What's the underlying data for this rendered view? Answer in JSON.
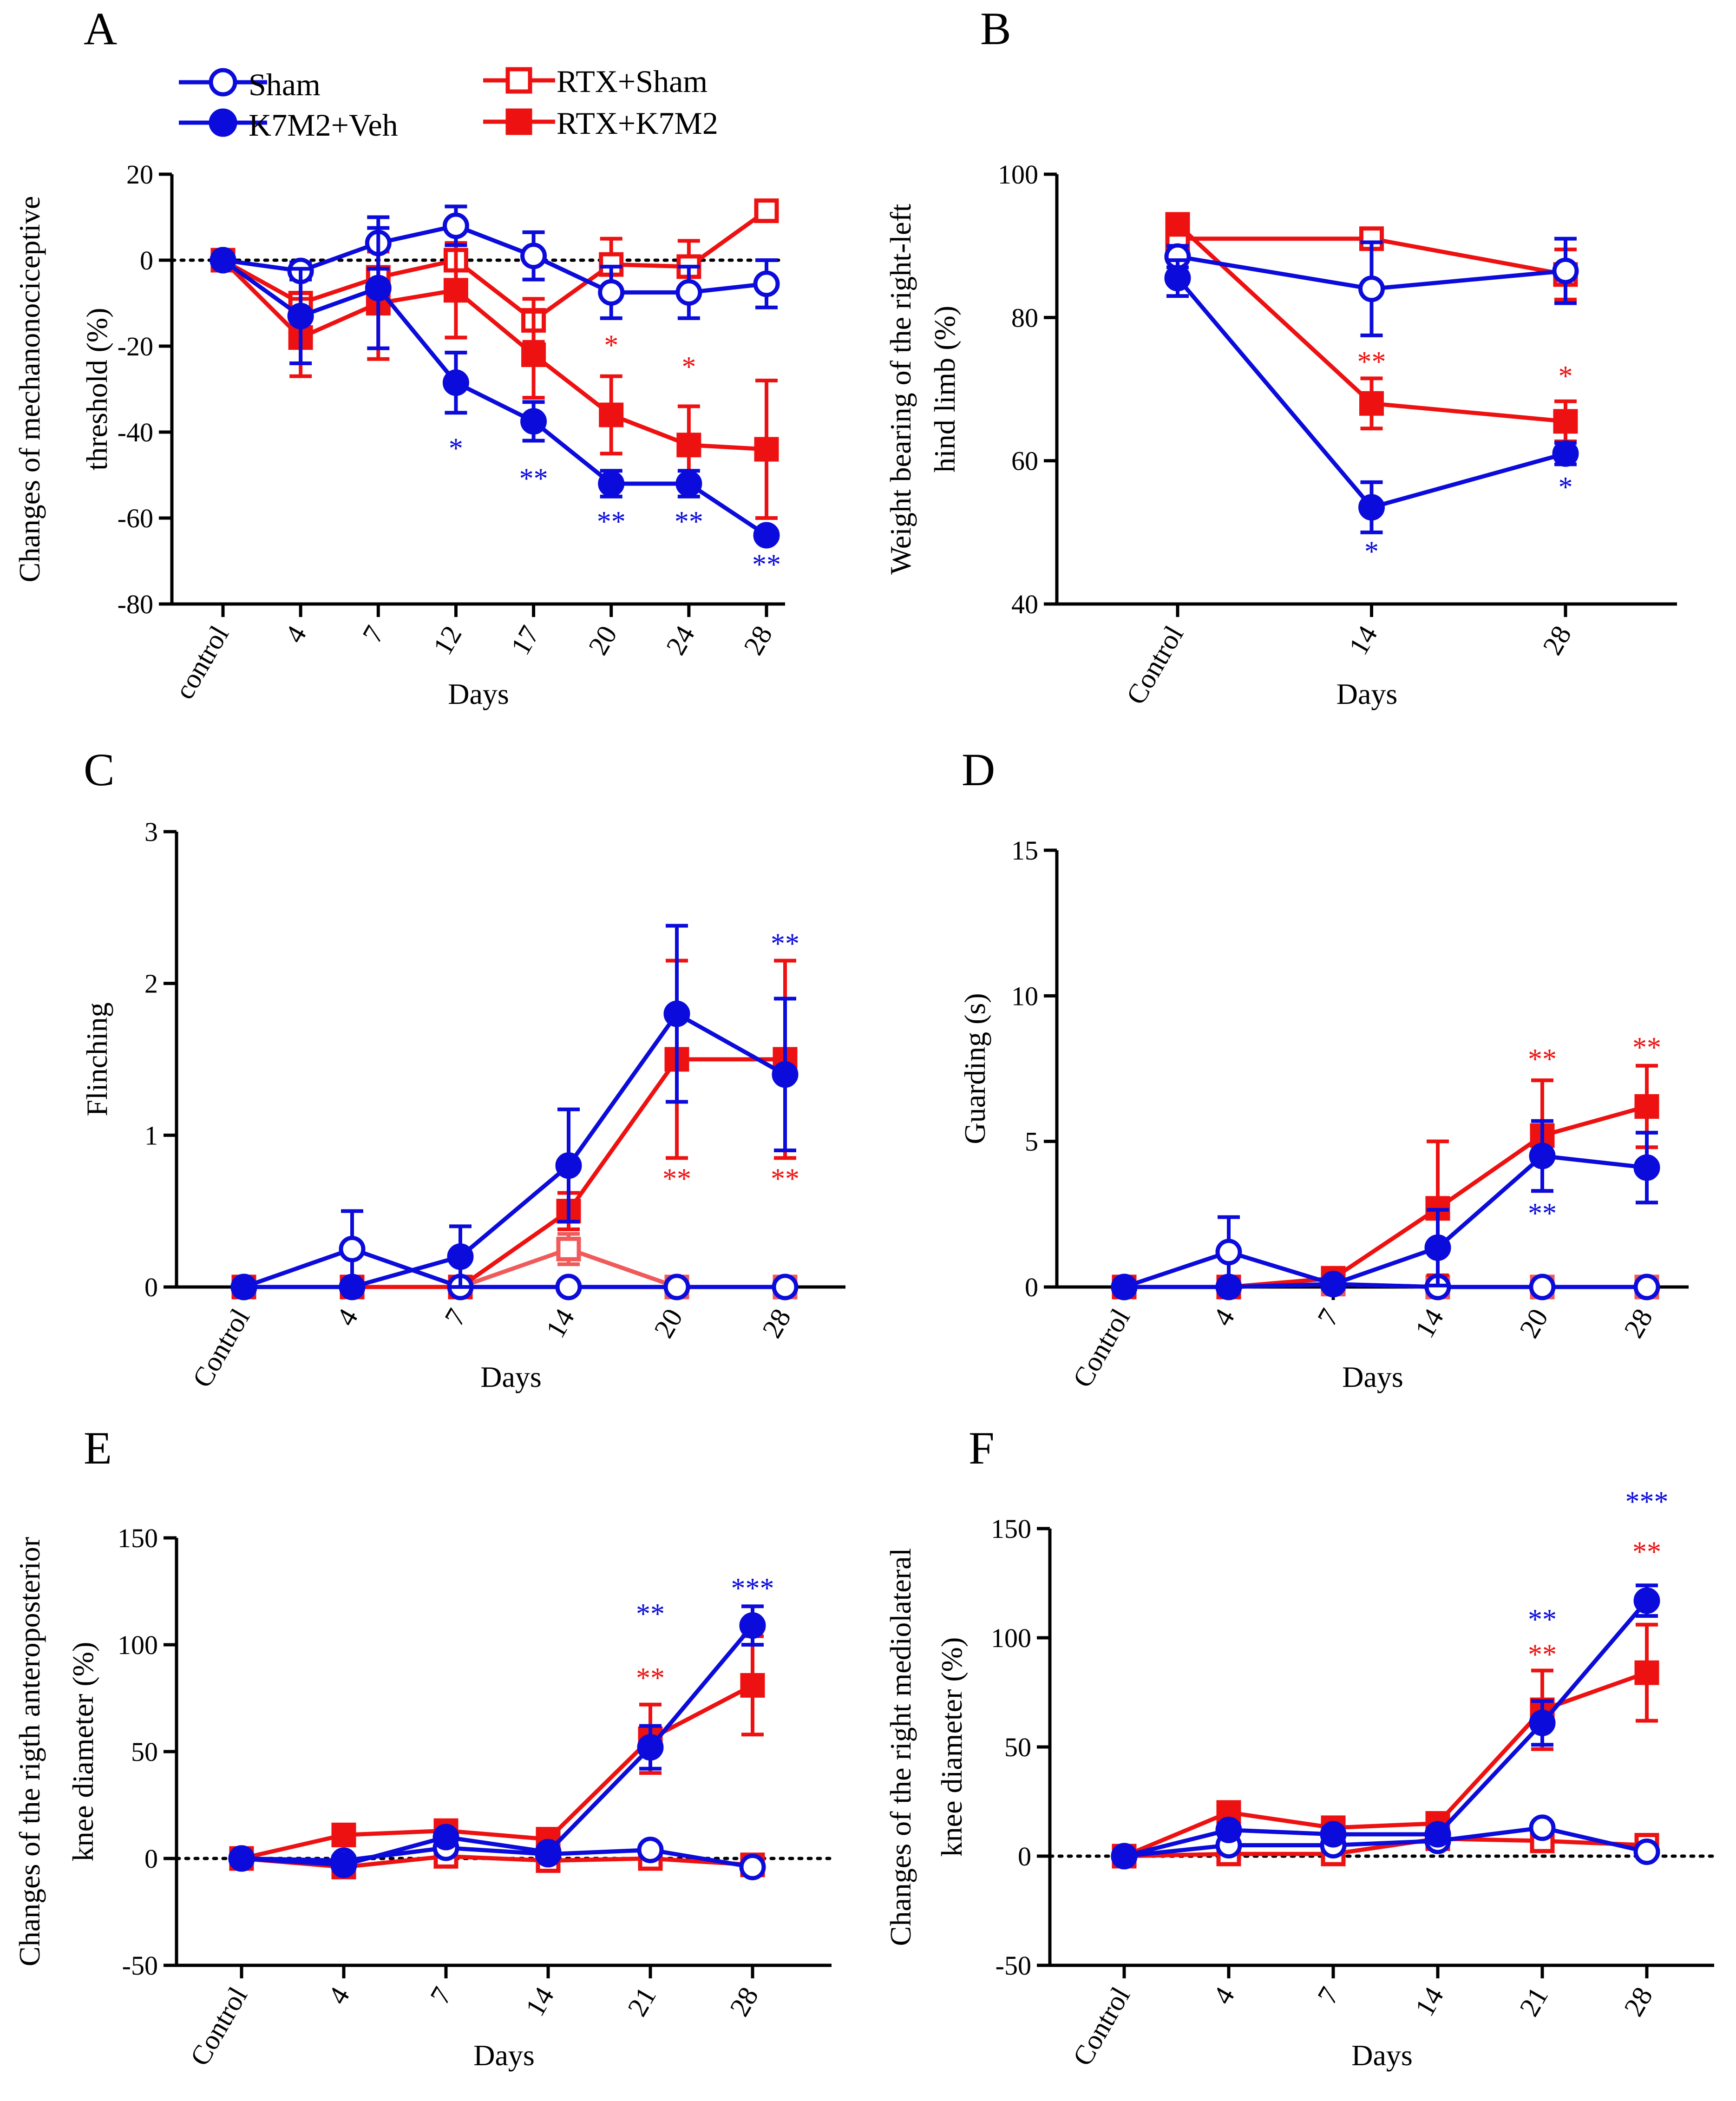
{
  "legend": {
    "sham": "Sham",
    "k7m2": "K7M2+Veh",
    "rtxsham": "RTX+Sham",
    "rtxk7m2": "RTX+K7M2"
  },
  "colors": {
    "blue": "#0b0bdb",
    "red": "#ee1111",
    "red_light": "#f05a5a"
  },
  "chart_data": [
    {
      "id": "A",
      "type": "line",
      "panel_label": "A",
      "ylabel": [
        "Changes of mechanonociceptive",
        "threshold (%)"
      ],
      "xlabel": "Days",
      "categories": [
        "control",
        "4",
        "7",
        "12",
        "17",
        "20",
        "24",
        "28"
      ],
      "ylim": [
        -80,
        20
      ],
      "yticks": [
        20,
        0,
        -20,
        -40,
        -60,
        -80
      ],
      "yticklabels": [
        "20",
        "0",
        "-20",
        "-40",
        "-60",
        "-80"
      ],
      "zero_line": true,
      "series": [
        {
          "key": "rtxsham",
          "name": "RTX+Sham",
          "color": "red",
          "marker": "square",
          "fill": "open",
          "values": [
            0,
            -10,
            -4,
            0,
            -14,
            -1,
            -1.5,
            11.5
          ],
          "err": [
            1,
            2,
            6,
            8,
            5,
            6,
            6,
            2
          ]
        },
        {
          "key": "rtxk7m2",
          "name": "RTX+K7M2",
          "color": "red",
          "marker": "square",
          "fill": "filled",
          "values": [
            0,
            -18,
            -10,
            -7,
            -22,
            -36,
            -43,
            -44
          ],
          "err": [
            1,
            9,
            13,
            11,
            10,
            9,
            9,
            16
          ]
        },
        {
          "key": "sham",
          "name": "Sham",
          "color": "blue",
          "marker": "circle",
          "fill": "open",
          "values": [
            0,
            -2.5,
            4,
            8,
            1,
            -7.5,
            -7.5,
            -5.5
          ],
          "err": [
            1,
            2,
            6,
            4.5,
            5.5,
            6,
            6,
            5.5
          ]
        },
        {
          "key": "k7m2",
          "name": "K7M2+Veh",
          "color": "blue",
          "marker": "circle",
          "fill": "filled",
          "values": [
            0,
            -13,
            -6.5,
            -28.5,
            -37.5,
            -52,
            -52,
            -64
          ],
          "err": [
            1,
            11,
            14,
            7,
            4.5,
            3,
            3,
            1
          ]
        }
      ],
      "annotations": [
        {
          "x": 3,
          "y": -46,
          "text": "*",
          "color": "blue"
        },
        {
          "x": 4,
          "y": -53,
          "text": "**",
          "color": "blue"
        },
        {
          "x": 5,
          "y": -63,
          "text": "**",
          "color": "blue"
        },
        {
          "x": 6,
          "y": -63,
          "text": "**",
          "color": "blue"
        },
        {
          "x": 7,
          "y": -73,
          "text": "**",
          "color": "blue"
        },
        {
          "x": 5,
          "y": -22,
          "text": "*",
          "color": "red"
        },
        {
          "x": 6,
          "y": -27,
          "text": "*",
          "color": "red"
        }
      ]
    },
    {
      "id": "B",
      "type": "line",
      "panel_label": "B",
      "ylabel": [
        "Weight bearing of the right-left",
        "hind limb (%)"
      ],
      "xlabel": "Days",
      "categories": [
        "Control",
        "14",
        "28"
      ],
      "ylim": [
        40,
        100
      ],
      "yticks": [
        100,
        80,
        60,
        40
      ],
      "yticklabels": [
        "100",
        "80",
        "60",
        "40"
      ],
      "zero_line": false,
      "series": [
        {
          "key": "rtxsham",
          "name": "RTX+Sham",
          "color": "red",
          "marker": "square",
          "fill": "open",
          "values": [
            91,
            91,
            86
          ],
          "err": [
            0.8,
            1.2,
            3.5
          ]
        },
        {
          "key": "rtxk7m2",
          "name": "RTX+K7M2",
          "color": "red",
          "marker": "square",
          "fill": "filled",
          "values": [
            93,
            68,
            65.5
          ],
          "err": [
            0.8,
            3.5,
            2.8
          ]
        },
        {
          "key": "sham",
          "name": "Sham",
          "color": "blue",
          "marker": "circle",
          "fill": "open",
          "values": [
            88.5,
            84,
            86.5
          ],
          "err": [
            1.5,
            6.5,
            4.5
          ]
        },
        {
          "key": "k7m2",
          "name": "K7M2+Veh",
          "color": "blue",
          "marker": "circle",
          "fill": "filled",
          "values": [
            85.5,
            53.5,
            61
          ],
          "err": [
            2.5,
            3.5,
            1.5
          ]
        }
      ],
      "annotations": [
        {
          "x": 1,
          "y": 72.5,
          "text": "**",
          "color": "red"
        },
        {
          "x": 2,
          "y": 70.5,
          "text": "*",
          "color": "red"
        },
        {
          "x": 1,
          "y": 46,
          "text": "*",
          "color": "blue"
        },
        {
          "x": 2,
          "y": 55,
          "text": "*",
          "color": "blue"
        }
      ]
    },
    {
      "id": "C",
      "type": "line",
      "panel_label": "C",
      "ylabel": [
        "Flinching"
      ],
      "xlabel": "Days",
      "categories": [
        "Control",
        "4",
        "7",
        "14",
        "20",
        "28"
      ],
      "ylim": [
        0,
        3
      ],
      "yticks": [
        3,
        2,
        1,
        0
      ],
      "yticklabels": [
        "3",
        "2",
        "1",
        "0"
      ],
      "zero_line": false,
      "series": [
        {
          "key": "rtxsham",
          "name": "RTX+Sham",
          "color": "red_light",
          "marker": "square",
          "fill": "open",
          "values": [
            0,
            0,
            0,
            0.25,
            0,
            0
          ],
          "err": [
            0,
            0,
            0,
            0.1,
            0,
            0
          ]
        },
        {
          "key": "rtxk7m2",
          "name": "RTX+K7M2",
          "color": "red",
          "marker": "square",
          "fill": "filled",
          "values": [
            0,
            0,
            0,
            0.5,
            1.5,
            1.5
          ],
          "err": [
            0,
            0,
            0,
            0.12,
            0.65,
            0.65
          ]
        },
        {
          "key": "sham",
          "name": "Sham",
          "color": "blue",
          "marker": "circle",
          "fill": "open",
          "values": [
            0,
            0.25,
            0,
            0,
            0,
            0
          ],
          "err": [
            0,
            0.25,
            0,
            0,
            0,
            0
          ]
        },
        {
          "key": "k7m2",
          "name": "K7M2+Veh",
          "color": "blue",
          "marker": "circle",
          "fill": "filled",
          "values": [
            0,
            0,
            0.2,
            0.8,
            1.8,
            1.4
          ],
          "err": [
            0,
            0,
            0.2,
            0.37,
            0.58,
            0.5
          ]
        }
      ],
      "annotations": [
        {
          "x": 5,
          "y": 2.2,
          "text": "**",
          "color": "blue"
        },
        {
          "x": 4,
          "y": 0.65,
          "text": "**",
          "color": "red"
        },
        {
          "x": 5,
          "y": 0.65,
          "text": "**",
          "color": "red"
        }
      ]
    },
    {
      "id": "D",
      "type": "line",
      "panel_label": "D",
      "ylabel": [
        "Guarding (s)"
      ],
      "xlabel": "Days",
      "categories": [
        "Control",
        "4",
        "7",
        "14",
        "20",
        "28"
      ],
      "ylim": [
        0,
        15
      ],
      "yticks": [
        15,
        10,
        5,
        0
      ],
      "yticklabels": [
        "15",
        "10",
        "5",
        "0"
      ],
      "zero_line": false,
      "series": [
        {
          "key": "rtxsham",
          "name": "RTX+Sham",
          "color": "red_light",
          "marker": "square",
          "fill": "open",
          "values": [
            0,
            0,
            0.1,
            0,
            0,
            0
          ],
          "err": [
            0,
            0,
            0,
            0,
            0,
            0
          ]
        },
        {
          "key": "rtxk7m2",
          "name": "RTX+K7M2",
          "color": "red",
          "marker": "square",
          "fill": "filled",
          "values": [
            0,
            0,
            0.3,
            2.7,
            5.2,
            6.2
          ],
          "err": [
            0,
            0,
            0,
            2.3,
            1.9,
            1.4
          ]
        },
        {
          "key": "sham",
          "name": "Sham",
          "color": "blue",
          "marker": "circle",
          "fill": "open",
          "values": [
            0,
            1.2,
            0.1,
            0,
            0,
            0
          ],
          "err": [
            0,
            1.2,
            0.1,
            0,
            0,
            0
          ]
        },
        {
          "key": "k7m2",
          "name": "K7M2+Veh",
          "color": "blue",
          "marker": "circle",
          "fill": "filled",
          "values": [
            0,
            0,
            0.1,
            1.35,
            4.5,
            4.1
          ],
          "err": [
            0,
            0,
            0.1,
            1.3,
            1.2,
            1.2
          ]
        }
      ],
      "annotations": [
        {
          "x": 4,
          "y": 7.5,
          "text": "**",
          "color": "red"
        },
        {
          "x": 5,
          "y": 7.9,
          "text": "**",
          "color": "red"
        },
        {
          "x": 4,
          "y": 2.2,
          "text": "**",
          "color": "blue"
        }
      ]
    },
    {
      "id": "E",
      "type": "line",
      "panel_label": "E",
      "ylabel": [
        "Changes of the rigth anteroposterior",
        "knee diameter (%)"
      ],
      "xlabel": "Days",
      "categories": [
        "Control",
        "4",
        "7",
        "14",
        "21",
        "28"
      ],
      "ylim": [
        -50,
        150
      ],
      "yticks": [
        150,
        100,
        50,
        0,
        -50
      ],
      "yticklabels": [
        "150",
        "100",
        "50",
        "0",
        "-50"
      ],
      "zero_line": true,
      "series": [
        {
          "key": "rtxsham",
          "name": "RTX+Sham",
          "color": "red",
          "marker": "square",
          "fill": "open",
          "values": [
            0,
            -4,
            1,
            -1,
            0,
            -3
          ],
          "err": [
            1,
            2,
            2,
            2,
            2,
            2
          ]
        },
        {
          "key": "rtxk7m2",
          "name": "RTX+K7M2",
          "color": "red",
          "marker": "square",
          "fill": "filled",
          "values": [
            0,
            11,
            13,
            9,
            56,
            81
          ],
          "err": [
            1,
            3,
            3,
            3,
            16,
            23
          ]
        },
        {
          "key": "sham",
          "name": "Sham",
          "color": "blue",
          "marker": "circle",
          "fill": "open",
          "values": [
            0,
            -1,
            5,
            2,
            4,
            -4
          ],
          "err": [
            1,
            2,
            3,
            2,
            2,
            2
          ]
        },
        {
          "key": "k7m2",
          "name": "K7M2+Veh",
          "color": "blue",
          "marker": "circle",
          "fill": "filled",
          "values": [
            0,
            -3,
            10,
            3,
            52,
            109
          ],
          "err": [
            1,
            2,
            3,
            2,
            10,
            9
          ]
        }
      ],
      "annotations": [
        {
          "x": 4,
          "y": 80,
          "text": "**",
          "color": "red"
        },
        {
          "x": 4,
          "y": 110,
          "text": "**",
          "color": "blue"
        },
        {
          "x": 5,
          "y": 122,
          "text": "***",
          "color": "blue"
        }
      ]
    },
    {
      "id": "F",
      "type": "line",
      "panel_label": "F",
      "ylabel": [
        "Changes of the right mediolateral",
        "knee diameter (%)"
      ],
      "xlabel": "Days",
      "categories": [
        "Control",
        "4",
        "7",
        "14",
        "21",
        "28"
      ],
      "ylim": [
        -50,
        150
      ],
      "yticks": [
        150,
        100,
        50,
        0,
        -50
      ],
      "yticklabels": [
        "150",
        "100",
        "50",
        "0",
        "-50"
      ],
      "zero_line": true,
      "series": [
        {
          "key": "rtxsham",
          "name": "RTX+Sham",
          "color": "red",
          "marker": "square",
          "fill": "open",
          "values": [
            0,
            1,
            1,
            8,
            7,
            5
          ],
          "err": [
            1,
            2,
            2,
            2,
            2,
            2
          ]
        },
        {
          "key": "rtxk7m2",
          "name": "RTX+K7M2",
          "color": "red",
          "marker": "square",
          "fill": "filled",
          "values": [
            0,
            20,
            13,
            15,
            67,
            84
          ],
          "err": [
            1,
            3,
            3,
            4,
            18,
            22
          ]
        },
        {
          "key": "sham",
          "name": "Sham",
          "color": "blue",
          "marker": "circle",
          "fill": "open",
          "values": [
            0,
            5,
            5,
            7,
            13,
            2
          ],
          "err": [
            1,
            2,
            2,
            2,
            2,
            2
          ]
        },
        {
          "key": "k7m2",
          "name": "K7M2+Veh",
          "color": "blue",
          "marker": "circle",
          "fill": "filled",
          "values": [
            0,
            12,
            10,
            10,
            61,
            117
          ],
          "err": [
            1,
            3,
            3,
            3,
            10,
            7
          ]
        }
      ],
      "annotations": [
        {
          "x": 4,
          "y": 88,
          "text": "**",
          "color": "red"
        },
        {
          "x": 4,
          "y": 104,
          "text": "**",
          "color": "blue"
        },
        {
          "x": 5,
          "y": 135,
          "text": "**",
          "color": "red"
        },
        {
          "x": 5,
          "y": 158,
          "text": "***",
          "color": "blue"
        }
      ]
    }
  ]
}
